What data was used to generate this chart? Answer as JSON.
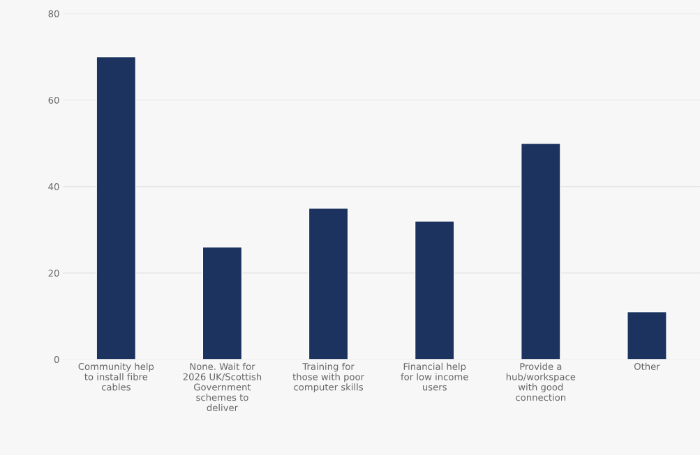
{
  "chart_data": {
    "type": "bar",
    "categories": [
      "Community help to install fibre cables",
      "None. Wait for 2026 UK/Scottish Government schemes to deliver",
      "Training for those with poor computer skills",
      "Financial help for low income users",
      "Provide a hub/workspace with good connection",
      "Other"
    ],
    "values": [
      70,
      26,
      35,
      32,
      50,
      11
    ],
    "color": "#1b335e",
    "ylim": [
      0,
      80
    ],
    "yticks": [
      0,
      20,
      40,
      60,
      80
    ],
    "grid": "y"
  }
}
